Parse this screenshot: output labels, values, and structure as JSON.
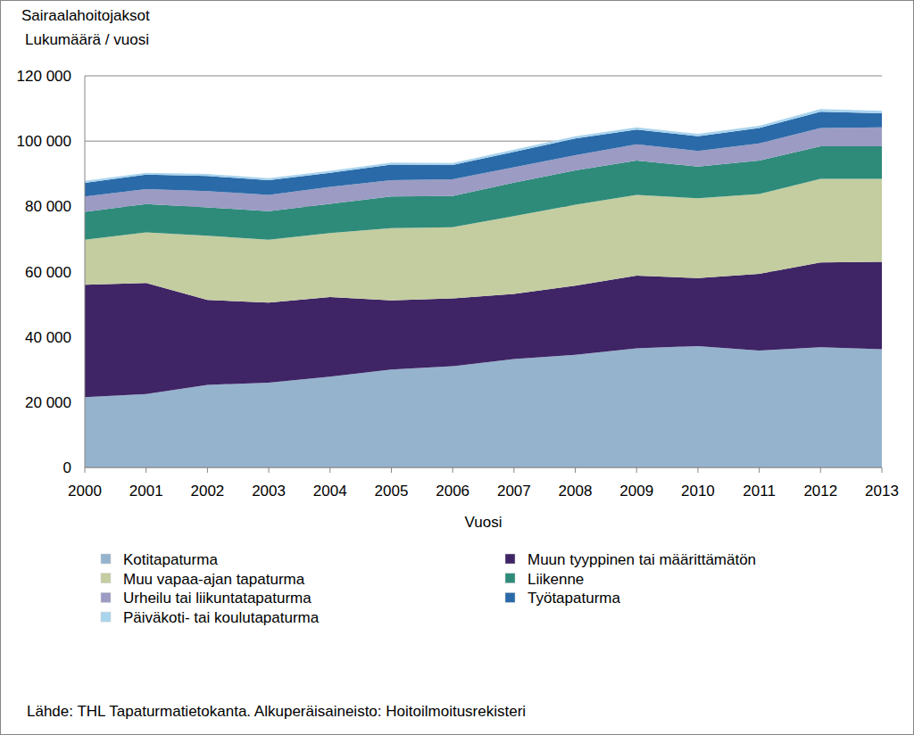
{
  "chart_data": {
    "type": "area",
    "stacked": true,
    "grid": true,
    "title": "Sairaalahoitojaksot",
    "subtitle": "Lukumäärä / vuosi",
    "x_label": "Vuosi",
    "source": "Lähde: THL Tapaturmatietokanta. Alkuperäisaineisto: Hoitoilmoitusrekisteri",
    "x": [
      2000,
      2001,
      2002,
      2003,
      2004,
      2005,
      2006,
      2007,
      2008,
      2009,
      2010,
      2011,
      2012,
      2013
    ],
    "xlim": [
      2000,
      2013
    ],
    "xticks": [
      2000,
      2001,
      2002,
      2003,
      2004,
      2005,
      2006,
      2007,
      2008,
      2009,
      2010,
      2011,
      2012,
      2013
    ],
    "ylim": [
      0,
      120000
    ],
    "yticks": [
      0,
      {
        "value": 20000,
        "label": "20 000"
      },
      {
        "value": 40000,
        "label": "40 000"
      },
      {
        "value": 60000,
        "label": "60 000"
      },
      {
        "value": 80000,
        "label": "80 000"
      },
      {
        "value": 100000,
        "label": "100 000"
      },
      {
        "value": 120000,
        "label": "120 000"
      }
    ],
    "legend": "bottom",
    "series": [
      {
        "name": "Kotitapaturma",
        "color": "#95b3cd",
        "values": [
          21500,
          22500,
          25300,
          26000,
          27800,
          30000,
          31000,
          33200,
          34500,
          36500,
          37200,
          35800,
          36800,
          36200
        ]
      },
      {
        "name": "Muun tyyppinen tai määrittämätön",
        "color": "#3f2466",
        "values": [
          34500,
          34000,
          26000,
          24500,
          24400,
          21200,
          20800,
          20000,
          21200,
          22300,
          20800,
          23500,
          26000,
          26800
        ]
      },
      {
        "name": "Muu vapaa-ajan tapaturma",
        "color": "#c3cda0",
        "values": [
          13800,
          15500,
          19700,
          19300,
          19600,
          22100,
          21800,
          23800,
          24800,
          24700,
          24500,
          24500,
          25600,
          25400
        ]
      },
      {
        "name": "Liikenne",
        "color": "#2e8b7a",
        "values": [
          8500,
          8700,
          8700,
          8700,
          9000,
          9700,
          9600,
          10300,
          10500,
          10500,
          9700,
          10200,
          10000,
          10000
        ]
      },
      {
        "name": "Urheilu tai liikuntatapaturma",
        "color": "#9b9bc4",
        "values": [
          4700,
          4600,
          5000,
          5000,
          5200,
          5000,
          5100,
          4700,
          4700,
          5000,
          4800,
          5300,
          5600,
          5800
        ]
      },
      {
        "name": "Työtapaturma",
        "color": "#2a6aa8",
        "values": [
          4200,
          4400,
          4600,
          4500,
          4300,
          4800,
          4400,
          4700,
          5100,
          4500,
          4500,
          4700,
          5000,
          4300
        ]
      },
      {
        "name": "Päiväkoti- tai koulutapaturma",
        "color": "#a9d4ee",
        "values": [
          600,
          600,
          600,
          600,
          600,
          600,
          600,
          700,
          700,
          700,
          700,
          700,
          800,
          800
        ]
      }
    ]
  }
}
